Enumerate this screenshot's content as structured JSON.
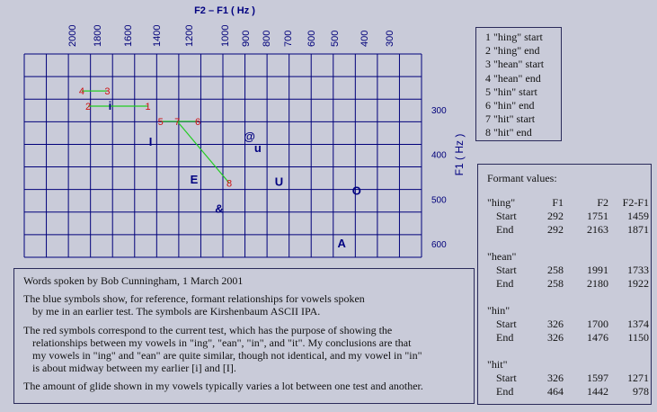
{
  "chart_data": {
    "type": "scatter",
    "title": "F2 – F1 ( Hz )",
    "ylabel": "F1  ( Hz )",
    "x_ticks": [
      2000,
      1800,
      1600,
      1400,
      1200,
      1000,
      900,
      800,
      700,
      600,
      500,
      400,
      300
    ],
    "y_ticks": [
      300,
      400,
      500,
      600
    ],
    "reference_vowels": [
      {
        "label": "i",
        "x": 1715,
        "y": 290
      },
      {
        "label": "I",
        "x": 1440,
        "y": 370
      },
      {
        "label": "@",
        "x": 880,
        "y": 358
      },
      {
        "label": "u",
        "x": 840,
        "y": 385
      },
      {
        "label": "E",
        "x": 1170,
        "y": 455
      },
      {
        "label": "U",
        "x": 740,
        "y": 460
      },
      {
        "label": "O",
        "x": 425,
        "y": 480
      },
      {
        "label": "&",
        "x": 1030,
        "y": 520
      },
      {
        "label": "A",
        "x": 475,
        "y": 598
      }
    ],
    "test_points": [
      {
        "label": "1",
        "x": 1459,
        "y": 292
      },
      {
        "label": "2",
        "x": 1871,
        "y": 292
      },
      {
        "label": "3",
        "x": 1733,
        "y": 258
      },
      {
        "label": "4",
        "x": 1922,
        "y": 258
      },
      {
        "label": "5",
        "x": 1374,
        "y": 326
      },
      {
        "label": "6",
        "x": 1150,
        "y": 326
      },
      {
        "label": "7",
        "x": 1271,
        "y": 326
      },
      {
        "label": "8",
        "x": 978,
        "y": 464
      }
    ],
    "segments": [
      [
        1,
        2
      ],
      [
        3,
        4
      ],
      [
        5,
        6
      ],
      [
        7,
        8
      ]
    ]
  },
  "legend": {
    "items": [
      "1 \"hing\" start",
      "2 \"hing\" end",
      "3 \"hean\" start",
      "4 \"hean\" end",
      "5 \"hin\" start",
      "6 \"hin\" end",
      "7 \"hit\" start",
      "8 \"hit\" end"
    ]
  },
  "formants": {
    "title": "Formant values:",
    "header": [
      "F1",
      "F2",
      "F2-F1"
    ],
    "groups": [
      {
        "name": "\"hing\"",
        "rows": [
          [
            "Start",
            "292",
            "1751",
            "1459"
          ],
          [
            "End",
            "292",
            "2163",
            "1871"
          ]
        ]
      },
      {
        "name": "\"hean\"",
        "rows": [
          [
            "Start",
            "258",
            "1991",
            "1733"
          ],
          [
            "End",
            "258",
            "2180",
            "1922"
          ]
        ]
      },
      {
        "name": "\"hin\"",
        "rows": [
          [
            "Start",
            "326",
            "1700",
            "1374"
          ],
          [
            "End",
            "326",
            "1476",
            "1150"
          ]
        ]
      },
      {
        "name": "\"hit\"",
        "rows": [
          [
            "Start",
            "326",
            "1597",
            "1271"
          ],
          [
            "End",
            "464",
            "1442",
            "978"
          ]
        ]
      }
    ]
  },
  "notes": {
    "p1": "Words spoken by Bob Cunningham, 1 March 2001",
    "p2a": "The blue symbols show, for reference, formant relationships for vowels spoken",
    "p2b": "by me in an earlier test.  The symbols are Kirshenbaum ASCII IPA.",
    "p3a": "The red symbols correspond to the current test, which has the purpose of showing the",
    "p3b": "relationships between my vowels in \"ing\", \"ean\", \"in\", and \"it\".  My conclusions are that",
    "p3c": "my vowels in \"ing\" and \"ean\" are quite similar, though not identical, and my vowel in \"in\"",
    "p3d": "is about midway between my earlier [i] and [I].",
    "p4": "The amount of glide shown in my vowels typically  varies a lot between one test and another."
  },
  "colors": {
    "grid": "#00007a",
    "reference": "#000080",
    "test": "#cc1111",
    "segment": "#22cc22"
  }
}
